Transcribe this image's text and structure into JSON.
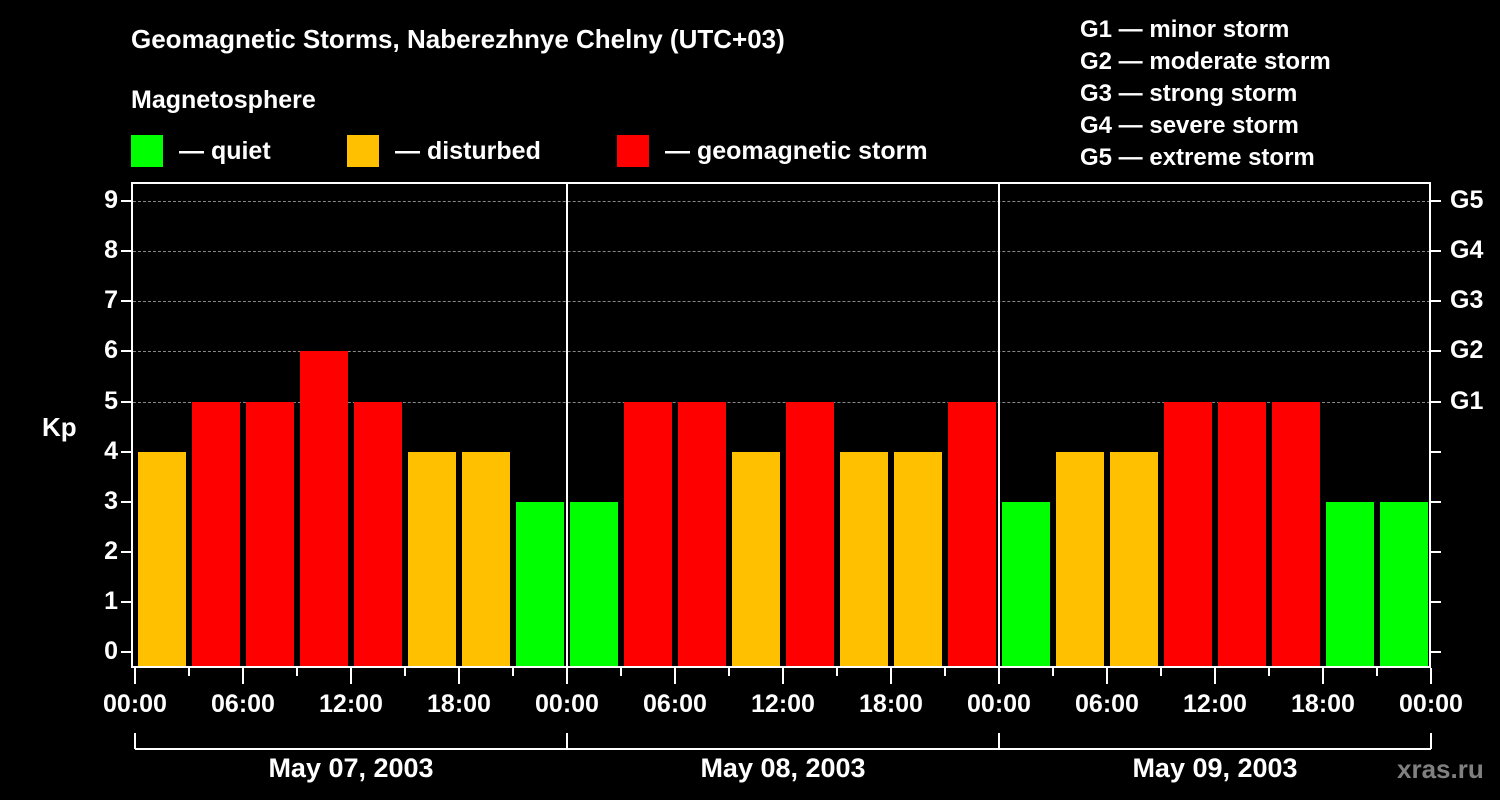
{
  "title": "Geomagnetic Storms, Naberezhnye Chelny (UTC+03)",
  "subtitle": "Magnetosphere",
  "legend": [
    {
      "label": "— quiet",
      "color": "#00ff00"
    },
    {
      "label": "— disturbed",
      "color": "#ffc000"
    },
    {
      "label": "— geomagnetic storm",
      "color": "#ff0000"
    }
  ],
  "g_legend": [
    "G1 — minor storm",
    "G2 — moderate storm",
    "G3 — strong storm",
    "G4 — severe storm",
    "G5 — extreme storm"
  ],
  "y_axis_label": "Kp",
  "watermark": "xras.ru",
  "chart_data": {
    "type": "bar",
    "title": "Geomagnetic Storms, Naberezhnye Chelny (UTC+03)",
    "xlabel": "",
    "ylabel": "Kp",
    "ylim": [
      0,
      9
    ],
    "y_ticks": [
      0,
      1,
      2,
      3,
      4,
      5,
      6,
      7,
      8,
      9
    ],
    "right_ticks": [
      {
        "value": 5,
        "label": "G1"
      },
      {
        "value": 6,
        "label": "G2"
      },
      {
        "value": 7,
        "label": "G3"
      },
      {
        "value": 8,
        "label": "G4"
      },
      {
        "value": 9,
        "label": "G5"
      }
    ],
    "x_tick_labels": [
      "00:00",
      "06:00",
      "12:00",
      "18:00",
      "00:00",
      "06:00",
      "12:00",
      "18:00",
      "00:00",
      "06:00",
      "12:00",
      "18:00",
      "00:00"
    ],
    "days": [
      "May 07, 2003",
      "May 08, 2003",
      "May 09, 2003"
    ],
    "interval_hours": 3,
    "grid": "dashed horizontal at 5-9",
    "categories": [
      "May 07 00-03",
      "May 07 03-06",
      "May 07 06-09",
      "May 07 09-12",
      "May 07 12-15",
      "May 07 15-18",
      "May 07 18-21",
      "May 07 21-24",
      "May 08 00-03",
      "May 08 03-06",
      "May 08 06-09",
      "May 08 09-12",
      "May 08 12-15",
      "May 08 15-18",
      "May 08 18-21",
      "May 08 21-24",
      "May 09 00-03",
      "May 09 03-06",
      "May 09 06-09",
      "May 09 09-12",
      "May 09 12-15",
      "May 09 15-18",
      "May 09 18-21",
      "May 09 21-24"
    ],
    "values": [
      4,
      5,
      5,
      6,
      5,
      4,
      4,
      3,
      3,
      5,
      5,
      4,
      5,
      4,
      4,
      5,
      3,
      4,
      4,
      5,
      5,
      5,
      3,
      3
    ],
    "colors_by_level": {
      "quiet": "#00ff00",
      "disturbed": "#ffc000",
      "storm": "#ff0000"
    }
  }
}
